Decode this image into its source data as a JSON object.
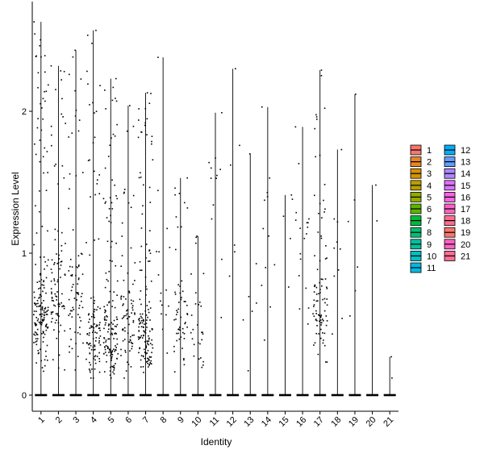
{
  "chart_data": {
    "type": "violin",
    "xlabel": "Identity",
    "ylabel": "Expression Level",
    "ylim": [
      -0.12,
      2.75
    ],
    "yticks": [
      0,
      1,
      2
    ],
    "grid": false,
    "legend_position": "right",
    "categories": [
      "1",
      "2",
      "3",
      "4",
      "5",
      "6",
      "7",
      "8",
      "9",
      "10",
      "11",
      "12",
      "13",
      "14",
      "15",
      "16",
      "17",
      "18",
      "19",
      "20",
      "21"
    ],
    "colors": [
      "#F8766D",
      "#E88526",
      "#D39200",
      "#B79F00",
      "#93AA00",
      "#5EB300",
      "#00BA38",
      "#00BF74",
      "#00C19F",
      "#00BFC4",
      "#00B9E3",
      "#00ADFA",
      "#619CFF",
      "#AE87FF",
      "#DB72FB",
      "#F564E3",
      "#FF61C3",
      "#FF6C91",
      "#F8766D",
      "#FF61C3",
      "#FF6C91"
    ],
    "series": [
      {
        "category": "1",
        "max": 2.63,
        "n_nonzero": 170,
        "median_nonzero": 0.55
      },
      {
        "category": "2",
        "max": 2.32,
        "n_nonzero": 95,
        "median_nonzero": 0.75
      },
      {
        "category": "3",
        "max": 2.43,
        "n_nonzero": 75,
        "median_nonzero": 0.7
      },
      {
        "category": "4",
        "max": 2.57,
        "n_nonzero": 110,
        "median_nonzero": 0.4
      },
      {
        "category": "5",
        "max": 2.23,
        "n_nonzero": 150,
        "median_nonzero": 0.4
      },
      {
        "category": "6",
        "max": 2.04,
        "n_nonzero": 80,
        "median_nonzero": 0.5
      },
      {
        "category": "7",
        "max": 2.13,
        "n_nonzero": 150,
        "median_nonzero": 0.4
      },
      {
        "category": "8",
        "max": 2.38,
        "n_nonzero": 16,
        "median_nonzero": 0.8
      },
      {
        "category": "9",
        "max": 1.53,
        "n_nonzero": 55,
        "median_nonzero": 0.5
      },
      {
        "category": "10",
        "max": 1.12,
        "n_nonzero": 28,
        "median_nonzero": 0.5
      },
      {
        "category": "11",
        "max": 1.99,
        "n_nonzero": 12,
        "median_nonzero": 1.2
      },
      {
        "category": "12",
        "max": 2.3,
        "n_nonzero": 6,
        "median_nonzero": 1.3
      },
      {
        "category": "13",
        "max": 1.7,
        "n_nonzero": 7,
        "median_nonzero": 0.7
      },
      {
        "category": "14",
        "max": 2.03,
        "n_nonzero": 12,
        "median_nonzero": 1.1
      },
      {
        "category": "15",
        "max": 1.41,
        "n_nonzero": 5,
        "median_nonzero": 0.8
      },
      {
        "category": "16",
        "max": 1.89,
        "n_nonzero": 18,
        "median_nonzero": 0.9
      },
      {
        "category": "17",
        "max": 2.29,
        "n_nonzero": 90,
        "median_nonzero": 0.6
      },
      {
        "category": "18",
        "max": 1.73,
        "n_nonzero": 10,
        "median_nonzero": 0.8
      },
      {
        "category": "19",
        "max": 2.12,
        "n_nonzero": 6,
        "median_nonzero": 0.9
      },
      {
        "category": "20",
        "max": 1.48,
        "n_nonzero": 2,
        "median_nonzero": 1.4
      },
      {
        "category": "21",
        "max": 0.27,
        "n_nonzero": 2,
        "median_nonzero": 0.2
      }
    ]
  }
}
